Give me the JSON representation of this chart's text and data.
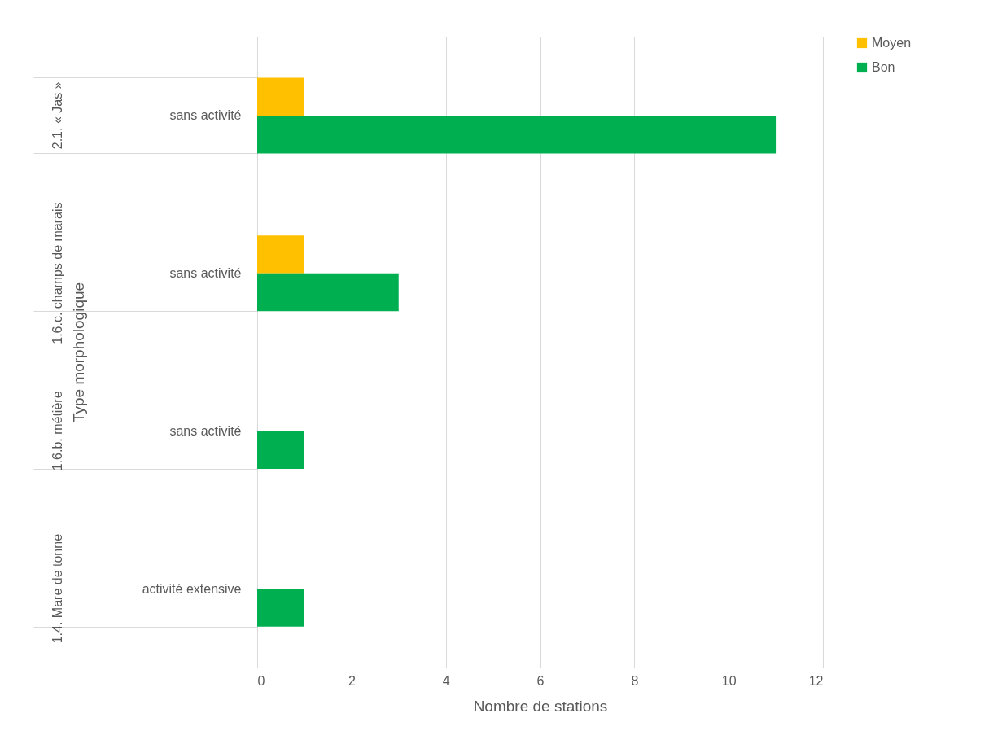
{
  "chart_data": {
    "type": "bar",
    "orientation": "horizontal",
    "xlabel": "Nombre de stations",
    "ylabel": "Type morphologique",
    "categories": [
      "sans activité",
      "sans activité",
      "sans activité",
      "activité extensive"
    ],
    "annotations": [
      "2.1. « Jas »",
      "1.6.c. champs de marais",
      "1.6.b. métière",
      "1.4. Mare de tonne"
    ],
    "series": [
      {
        "name": "Moyen",
        "color": "#ffc000",
        "values": [
          1,
          1,
          null,
          null
        ]
      },
      {
        "name": "Bon",
        "color": "#00b050",
        "values": [
          11,
          3,
          1,
          1
        ]
      }
    ],
    "xlim": [
      0,
      12
    ],
    "xticks": [
      0,
      2,
      4,
      6,
      8,
      10,
      12
    ],
    "grid": "x",
    "legend": "right"
  }
}
